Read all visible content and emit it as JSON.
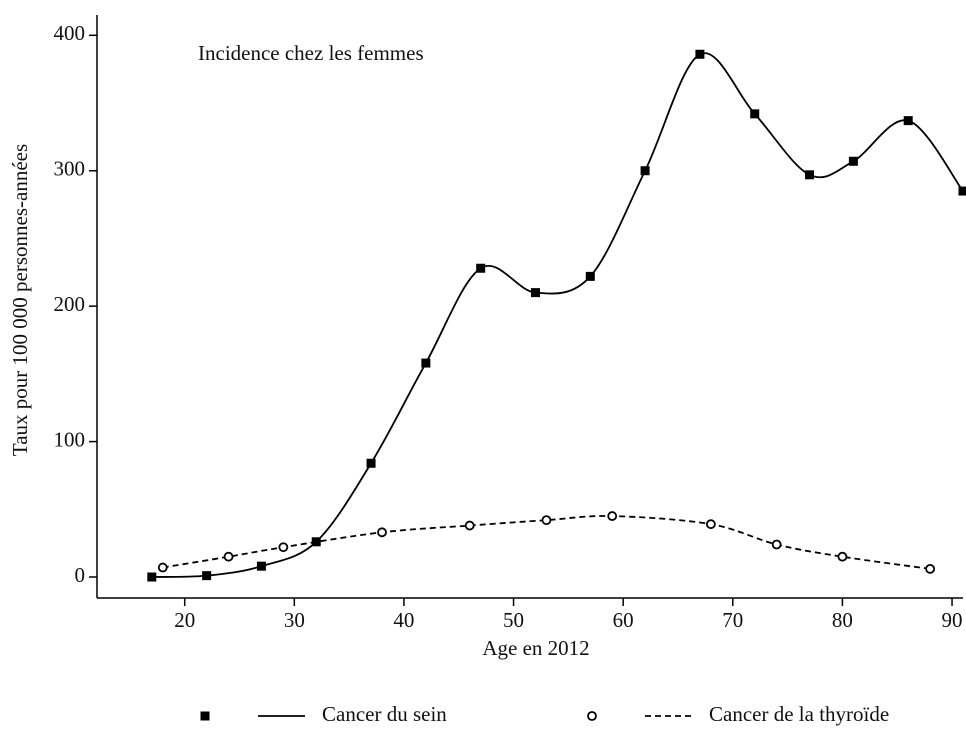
{
  "chart_data": {
    "type": "line",
    "annotation": "Incidence chez les femmes",
    "x_label": "Age en 2012",
    "y_label": "Taux pour 100 000 personnes-années",
    "xlim": [
      12,
      91
    ],
    "ylim": [
      -15.5,
      415
    ],
    "xticks": [
      20,
      30,
      40,
      50,
      60,
      70,
      80,
      90
    ],
    "yticks": [
      0,
      100,
      200,
      300,
      400
    ],
    "legend": "bottom",
    "series": [
      {
        "name": "Cancer du sein",
        "color": "#000000",
        "marker": "square",
        "line_style": "solid",
        "x": [
          17,
          22,
          27,
          32,
          37,
          42,
          47,
          52,
          57,
          62,
          67,
          72,
          77,
          81,
          86,
          91
        ],
        "values": [
          0,
          1,
          8,
          26,
          84,
          158,
          228,
          210,
          222,
          300,
          386,
          342,
          297,
          307,
          337,
          285
        ]
      },
      {
        "name": "Cancer de la thyroïde",
        "color": "#000000",
        "marker": "circle",
        "line_style": "dashed",
        "x": [
          18,
          24,
          29,
          38,
          46,
          53,
          59,
          68,
          74,
          80,
          88
        ],
        "values": [
          7,
          15,
          22,
          33,
          38,
          42,
          45,
          39,
          24,
          15,
          6
        ]
      }
    ]
  }
}
